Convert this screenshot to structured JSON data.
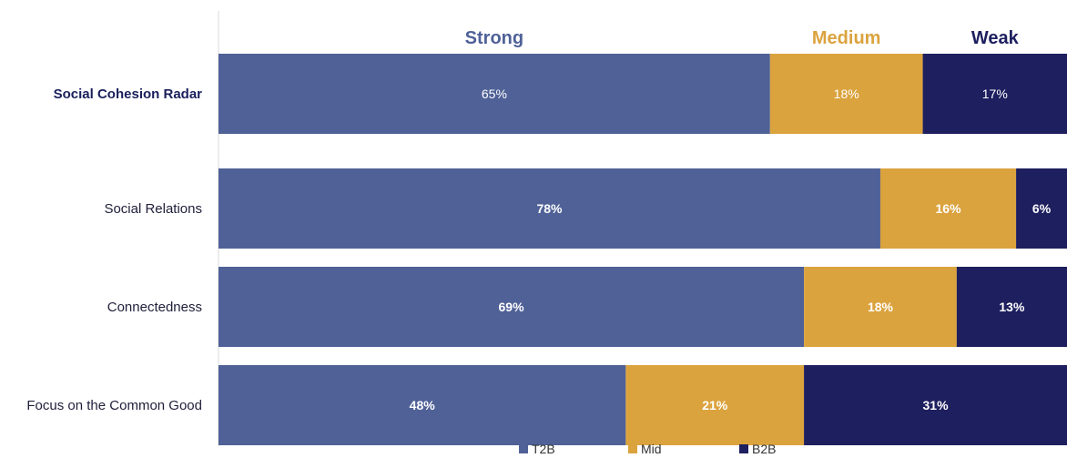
{
  "chart_data": {
    "type": "bar",
    "orientation": "horizontal",
    "stacked": true,
    "categories": [
      "Social Cohesion Radar",
      "Social Relations",
      "Connectedness",
      "Focus on the Common Good"
    ],
    "series": [
      {
        "name": "T2B",
        "values": [
          65,
          78,
          69,
          48
        ],
        "color": "#4f6197",
        "labels": [
          "65%",
          "78%",
          "69%",
          "48%"
        ]
      },
      {
        "name": "Mid",
        "values": [
          18,
          16,
          18,
          21
        ],
        "color": "#dba33e",
        "labels": [
          "18%",
          "16%",
          "18%",
          "21%"
        ]
      },
      {
        "name": "B2B",
        "values": [
          17,
          6,
          13,
          31
        ],
        "color": "#1e1f5f",
        "labels": [
          "17%",
          "6%",
          "13%",
          "31%"
        ]
      }
    ],
    "column_headers": [
      {
        "text": "Strong",
        "color": "#4f6197"
      },
      {
        "text": "Medium",
        "color": "#dba33e"
      },
      {
        "text": "Weak",
        "color": "#1e1f5f"
      }
    ],
    "xlim": [
      0,
      100
    ],
    "grid": false,
    "legend_position": "bottom"
  }
}
